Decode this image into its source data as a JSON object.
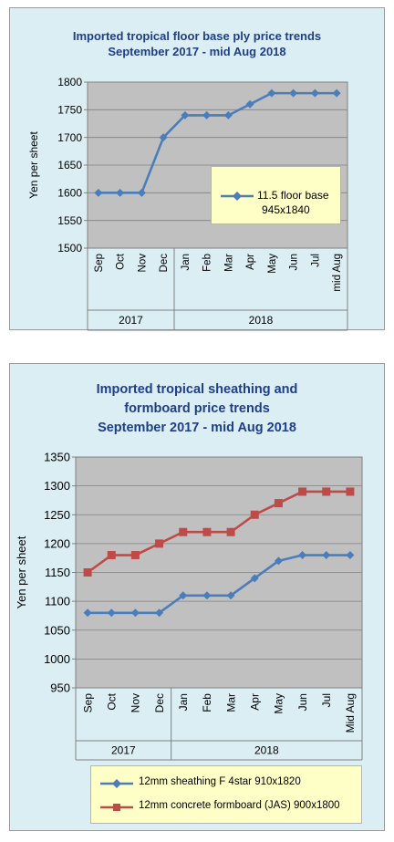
{
  "chart_data": [
    {
      "type": "line",
      "title": [
        "Imported tropical floor base ply price trends",
        "September 2017 - mid Aug 2018"
      ],
      "ylabel": "Yen per sheet",
      "ylim": [
        1500,
        1800
      ],
      "yticks": [
        "1500",
        "1550",
        "1600",
        "1650",
        "1700",
        "1750",
        "1800"
      ],
      "categories": [
        "Sep",
        "Oct",
        "Nov",
        "Dec",
        "Jan",
        "Feb",
        "Mar",
        "Apr",
        "May",
        "Jun",
        "Jul",
        "mid Aug"
      ],
      "groups": [
        {
          "label": "2017",
          "count": 4
        },
        {
          "label": "2018",
          "count": 8
        }
      ],
      "grid": true,
      "legend_position": "center-right",
      "series": [
        {
          "name": "11.5 floor base 945x1840",
          "legend_lines": [
            "11.5 floor base",
            "945x1840"
          ],
          "color": "#4a7ebb",
          "marker": "diamond",
          "values": [
            1600,
            1600,
            1600,
            1700,
            1740,
            1740,
            1740,
            1760,
            1780,
            1780,
            1780,
            1780
          ]
        }
      ]
    },
    {
      "type": "line",
      "title": [
        "Imported tropical sheathing and",
        "formboard price trends",
        "September 2017 - mid Aug 2018"
      ],
      "ylabel": "Yen per sheet",
      "ylim": [
        950,
        1350
      ],
      "yticks": [
        "950",
        "1000",
        "1050",
        "1100",
        "1150",
        "1200",
        "1250",
        "1300",
        "1350"
      ],
      "categories": [
        "Sep",
        "Oct",
        "Nov",
        "Dec",
        "Jan",
        "Feb",
        "Mar",
        "Apr",
        "May",
        "Jun",
        "Jul",
        "Mid Aug"
      ],
      "groups": [
        {
          "label": "2017",
          "count": 4
        },
        {
          "label": "2018",
          "count": 8
        }
      ],
      "grid": true,
      "legend_position": "bottom",
      "series": [
        {
          "name": "12mm sheathing F 4star 910x1820",
          "color": "#4a7ebb",
          "marker": "diamond",
          "values": [
            1080,
            1080,
            1080,
            1080,
            1110,
            1110,
            1110,
            1140,
            1170,
            1180,
            1180,
            1180
          ]
        },
        {
          "name": "12mm concrete formboard (JAS) 900x1800",
          "color": "#be4b48",
          "marker": "square",
          "values": [
            1150,
            1180,
            1180,
            1200,
            1220,
            1220,
            1220,
            1250,
            1270,
            1290,
            1290,
            1290
          ]
        }
      ]
    }
  ]
}
